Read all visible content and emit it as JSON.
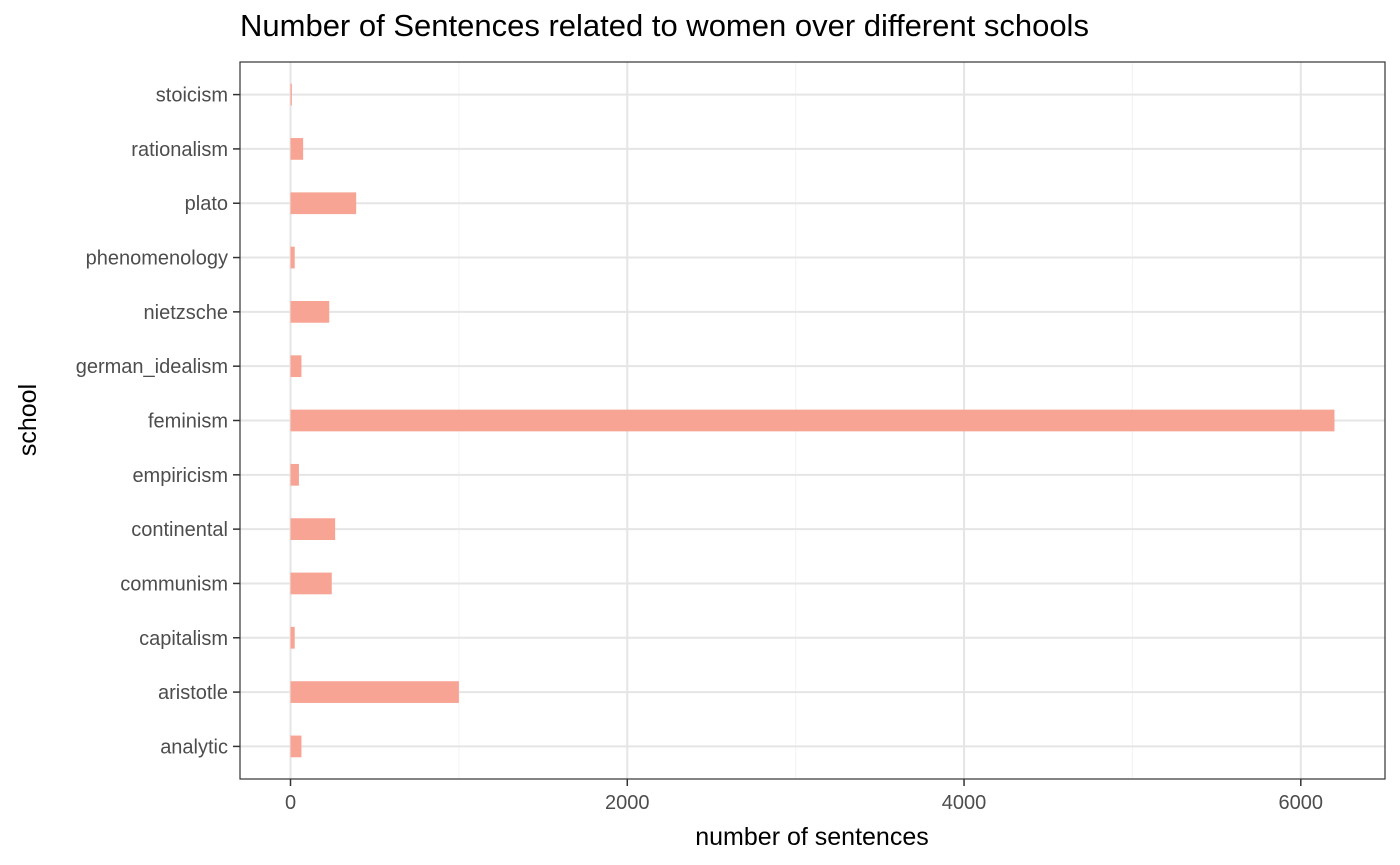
{
  "chart_data": {
    "type": "bar",
    "orientation": "horizontal",
    "title": "Number of Sentences related to women over different schools",
    "xlabel": "number of sentences",
    "ylabel": "school",
    "categories": [
      "analytic",
      "aristotle",
      "capitalism",
      "communism",
      "continental",
      "empiricism",
      "feminism",
      "german_idealism",
      "nietzsche",
      "phenomenology",
      "plato",
      "rationalism",
      "stoicism"
    ],
    "values": [
      65,
      1000,
      25,
      245,
      265,
      50,
      6200,
      65,
      230,
      25,
      390,
      75,
      8
    ],
    "xlim": [
      -300,
      6500
    ],
    "xticks": [
      0,
      2000,
      4000,
      6000
    ],
    "grid": true,
    "bar_color": "#F8A494",
    "legend": "none"
  }
}
